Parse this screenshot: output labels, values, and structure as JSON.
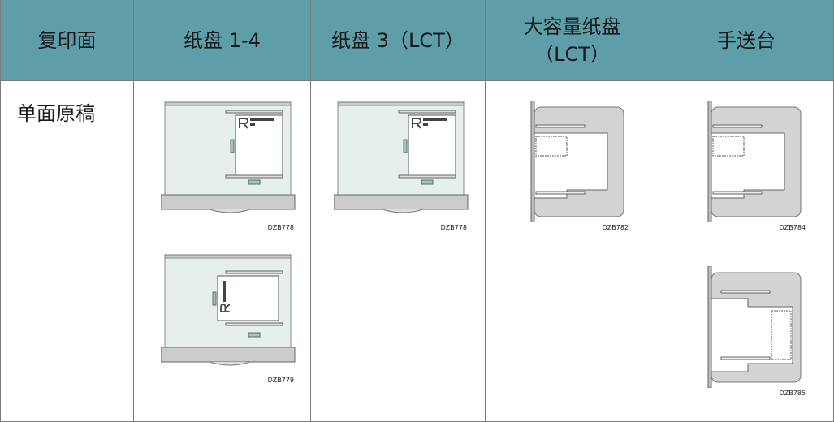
{
  "table": {
    "headers": [
      "复印面",
      "纸盘 1-4",
      "纸盘 3（LCT）",
      "大容量纸盘\n（LCT）",
      "手送台"
    ],
    "rows": [
      {
        "label": "单面原稿",
        "figures": [
          [
            "DZB778",
            "DZB779"
          ],
          [
            "DZB778"
          ],
          [
            "DZB782"
          ],
          [
            "DZB784",
            "DZB785"
          ]
        ]
      }
    ]
  }
}
